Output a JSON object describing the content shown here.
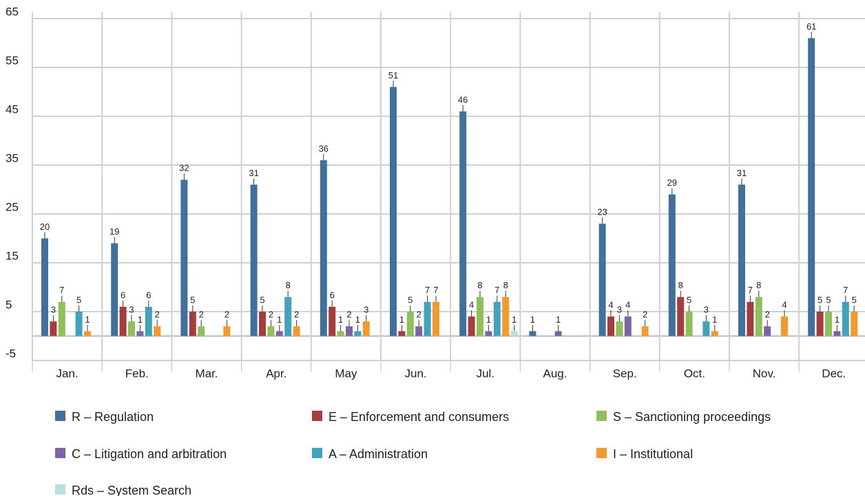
{
  "chart_data": {
    "type": "bar",
    "categories": [
      "Jan.",
      "Feb.",
      "Mar.",
      "Apr.",
      "May",
      "Jun.",
      "Jul.",
      "Aug.",
      "Sep.",
      "Oct.",
      "Nov.",
      "Dec."
    ],
    "series": [
      {
        "name": "R – Regulation",
        "color": "#40709c",
        "values": [
          20,
          19,
          32,
          31,
          36,
          51,
          46,
          1,
          23,
          29,
          31,
          61
        ]
      },
      {
        "name": "E – Enforcement and consumers",
        "color": "#a63d3d",
        "values": [
          3,
          6,
          5,
          5,
          6,
          1,
          4,
          null,
          4,
          8,
          7,
          5
        ]
      },
      {
        "name": "S – Sanctioning proceedings",
        "color": "#8fc05a",
        "values": [
          7,
          3,
          2,
          2,
          1,
          5,
          8,
          null,
          3,
          5,
          8,
          5
        ]
      },
      {
        "name": "C – Litigation and arbitration",
        "color": "#7c63a4",
        "values": [
          null,
          1,
          null,
          1,
          2,
          2,
          1,
          1,
          4,
          null,
          2,
          1
        ]
      },
      {
        "name": "A – Administration",
        "color": "#3fa4bb",
        "values": [
          5,
          6,
          null,
          8,
          1,
          7,
          7,
          null,
          null,
          3,
          null,
          7
        ]
      },
      {
        "name": "I – Institutional",
        "color": "#f39a2c",
        "values": [
          1,
          2,
          2,
          2,
          3,
          7,
          8,
          null,
          2,
          1,
          4,
          5
        ]
      },
      {
        "name": "Rds – System Search",
        "color": "#b8e0df",
        "values": [
          null,
          null,
          null,
          null,
          null,
          null,
          1,
          null,
          null,
          null,
          null,
          null
        ]
      }
    ],
    "ylim": [
      -5,
      65
    ],
    "yticks": [
      -5,
      5,
      15,
      25,
      35,
      45,
      55,
      65
    ],
    "grid": true,
    "legend": "bottom"
  }
}
